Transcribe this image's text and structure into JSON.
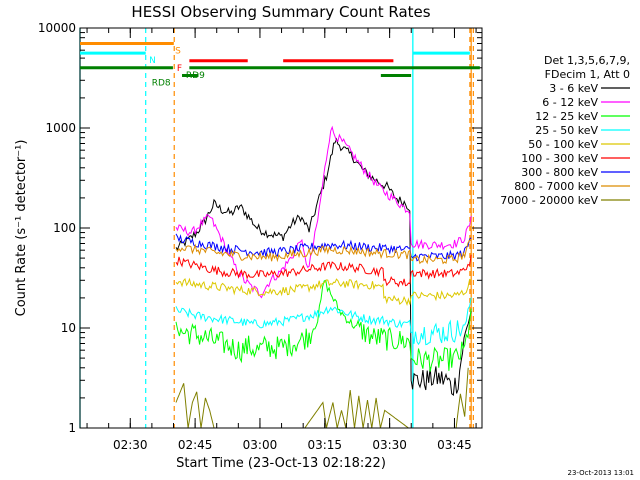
{
  "chart_data": {
    "type": "line",
    "title": "HESSI Observing Summary Count Rates",
    "xlabel": "Start Time (23-Oct-13 02:18:22)",
    "ylabel": "Count Rate (s⁻¹ detector⁻¹)",
    "yscale": "log",
    "ylim": [
      1,
      10000
    ],
    "xlim_minutes": [
      0,
      93
    ],
    "x_ticks": [
      {
        "label": "02:30",
        "min": 11.63
      },
      {
        "label": "02:45",
        "min": 26.63
      },
      {
        "label": "03:00",
        "min": 41.63
      },
      {
        "label": "03:15",
        "min": 56.63
      },
      {
        "label": "03:30",
        "min": 71.63
      },
      {
        "label": "03:45",
        "min": 86.63
      }
    ],
    "y_ticks": [
      {
        "label": "1",
        "value": 1
      },
      {
        "label": "10",
        "value": 10
      },
      {
        "label": "100",
        "value": 100
      },
      {
        "label": "1000",
        "value": 1000
      },
      {
        "label": "10000",
        "value": 10000
      }
    ],
    "legend_header": [
      "Det 1,3,5,6,7,9,",
      "FDecim 1, Att 0"
    ],
    "legend_position": "right",
    "series": [
      {
        "name": "3 - 6 keV",
        "color": "#000000",
        "points": [
          [
            22.2,
            62
          ],
          [
            25,
            75
          ],
          [
            27,
            90
          ],
          [
            29,
            120
          ],
          [
            31,
            175
          ],
          [
            33,
            150
          ],
          [
            35,
            140
          ],
          [
            37,
            165
          ],
          [
            39,
            130
          ],
          [
            41,
            100
          ],
          [
            43,
            90
          ],
          [
            45,
            85
          ],
          [
            47,
            82
          ],
          [
            49,
            110
          ],
          [
            51,
            130
          ],
          [
            53,
            95
          ],
          [
            55,
            180
          ],
          [
            57,
            330
          ],
          [
            59,
            750
          ],
          [
            61,
            620
          ],
          [
            63,
            520
          ],
          [
            65,
            400
          ],
          [
            67,
            330
          ],
          [
            69,
            290
          ],
          [
            71,
            260
          ],
          [
            73,
            200
          ],
          [
            75,
            180
          ],
          [
            76.3,
            160
          ],
          [
            76.6,
            3
          ],
          [
            78,
            3
          ],
          [
            80,
            3
          ],
          [
            82,
            3.2
          ],
          [
            85,
            3
          ],
          [
            86,
            2.5
          ],
          [
            87.5,
            3
          ],
          [
            88.5,
            6
          ],
          [
            89.5,
            10
          ],
          [
            90.5,
            15
          ]
        ]
      },
      {
        "name": "6 - 12 keV",
        "color": "#ff00ff",
        "points": [
          [
            22.2,
            100
          ],
          [
            24,
            95
          ],
          [
            26,
            90
          ],
          [
            28,
            110
          ],
          [
            30,
            130
          ],
          [
            32,
            90
          ],
          [
            34,
            60
          ],
          [
            36,
            40
          ],
          [
            38,
            30
          ],
          [
            40,
            25
          ],
          [
            42,
            22
          ],
          [
            44,
            30
          ],
          [
            46,
            35
          ],
          [
            48,
            45
          ],
          [
            50,
            60
          ],
          [
            51,
            80
          ],
          [
            52,
            50
          ],
          [
            53,
            40
          ],
          [
            55,
            120
          ],
          [
            57,
            500
          ],
          [
            58,
            1000
          ],
          [
            59,
            850
          ],
          [
            61,
            700
          ],
          [
            63,
            550
          ],
          [
            65,
            420
          ],
          [
            67,
            330
          ],
          [
            69,
            260
          ],
          [
            71,
            220
          ],
          [
            73,
            190
          ],
          [
            75,
            160
          ],
          [
            76.3,
            150
          ],
          [
            76.6,
            70
          ],
          [
            80,
            68
          ],
          [
            84,
            68
          ],
          [
            87,
            70
          ],
          [
            89,
            80
          ],
          [
            90.5,
            120
          ]
        ]
      },
      {
        "name": "12 - 25 keV",
        "color": "#00ff00",
        "points": [
          [
            22.2,
            12
          ],
          [
            23,
            9
          ],
          [
            25,
            9
          ],
          [
            27,
            8.5
          ],
          [
            29,
            8
          ],
          [
            31,
            7.5
          ],
          [
            33,
            7
          ],
          [
            35,
            6.5
          ],
          [
            37,
            6
          ],
          [
            39,
            6.5
          ],
          [
            41,
            6
          ],
          [
            43,
            6.5
          ],
          [
            45,
            6.3
          ],
          [
            47,
            6.5
          ],
          [
            49,
            7
          ],
          [
            51,
            7.5
          ],
          [
            53,
            8.5
          ],
          [
            55,
            12
          ],
          [
            56.5,
            30
          ],
          [
            58,
            22
          ],
          [
            60,
            15
          ],
          [
            62,
            12
          ],
          [
            64,
            10
          ],
          [
            66,
            9
          ],
          [
            68,
            8
          ],
          [
            70,
            8
          ],
          [
            72,
            7.5
          ],
          [
            74,
            7.5
          ],
          [
            76.3,
            7.3
          ],
          [
            76.6,
            5
          ],
          [
            80,
            4.8
          ],
          [
            84,
            4.8
          ],
          [
            87,
            5
          ],
          [
            89,
            6
          ],
          [
            90.5,
            15
          ]
        ]
      },
      {
        "name": "25 - 50 keV",
        "color": "#00ffff",
        "points": [
          [
            22.2,
            15
          ],
          [
            25,
            14
          ],
          [
            28,
            13
          ],
          [
            31,
            12.5
          ],
          [
            34,
            12
          ],
          [
            37,
            11.5
          ],
          [
            40,
            11
          ],
          [
            43,
            11
          ],
          [
            46,
            11.5
          ],
          [
            49,
            12
          ],
          [
            52,
            13
          ],
          [
            55,
            14
          ],
          [
            58,
            16
          ],
          [
            60,
            15
          ],
          [
            62,
            14
          ],
          [
            64,
            13
          ],
          [
            66,
            12.5
          ],
          [
            68,
            12
          ],
          [
            70,
            12
          ],
          [
            72,
            11.5
          ],
          [
            74,
            11
          ],
          [
            76.3,
            11
          ],
          [
            76.6,
            9
          ],
          [
            80,
            9
          ],
          [
            84,
            9
          ],
          [
            87,
            9.5
          ],
          [
            89,
            10
          ],
          [
            90.5,
            20
          ]
        ]
      },
      {
        "name": "50 - 100 keV",
        "color": "#dcc800",
        "points": [
          [
            22.2,
            30
          ],
          [
            25,
            28
          ],
          [
            28,
            27
          ],
          [
            31,
            26
          ],
          [
            34,
            25
          ],
          [
            37,
            24
          ],
          [
            40,
            23.5
          ],
          [
            43,
            23
          ],
          [
            46,
            23.5
          ],
          [
            49,
            24
          ],
          [
            52,
            25
          ],
          [
            55,
            27
          ],
          [
            58,
            28
          ],
          [
            61,
            28
          ],
          [
            64,
            27
          ],
          [
            67,
            27
          ],
          [
            69,
            26
          ],
          [
            70.1,
            26
          ],
          [
            70.3,
            20
          ],
          [
            73,
            19
          ],
          [
            76.3,
            19
          ],
          [
            76.6,
            21
          ],
          [
            80,
            21
          ],
          [
            84,
            21
          ],
          [
            87,
            21
          ],
          [
            89,
            23
          ],
          [
            90.5,
            30
          ]
        ]
      },
      {
        "name": "100 - 300 keV",
        "color": "#ff0000",
        "points": [
          [
            22.2,
            48
          ],
          [
            25,
            44
          ],
          [
            28,
            41
          ],
          [
            31,
            38
          ],
          [
            34,
            36
          ],
          [
            37,
            35
          ],
          [
            40,
            34
          ],
          [
            43,
            34
          ],
          [
            46,
            35
          ],
          [
            49,
            36
          ],
          [
            52,
            38
          ],
          [
            55,
            40
          ],
          [
            58,
            42
          ],
          [
            61,
            41
          ],
          [
            64,
            40
          ],
          [
            67,
            38
          ],
          [
            69,
            37
          ],
          [
            70.1,
            37
          ],
          [
            70.3,
            30
          ],
          [
            73,
            29
          ],
          [
            76.3,
            28
          ],
          [
            76.6,
            36
          ],
          [
            80,
            35
          ],
          [
            84,
            35
          ],
          [
            87,
            35
          ],
          [
            89,
            38
          ],
          [
            90.5,
            50
          ]
        ]
      },
      {
        "name": "300 - 800 keV",
        "color": "#0000ff",
        "points": [
          [
            22.2,
            80
          ],
          [
            25,
            74
          ],
          [
            28,
            70
          ],
          [
            31,
            66
          ],
          [
            34,
            63
          ],
          [
            37,
            60
          ],
          [
            40,
            58
          ],
          [
            43,
            57
          ],
          [
            46,
            58
          ],
          [
            49,
            60
          ],
          [
            52,
            63
          ],
          [
            55,
            66
          ],
          [
            58,
            68
          ],
          [
            61,
            67
          ],
          [
            64,
            66
          ],
          [
            67,
            64
          ],
          [
            70,
            63
          ],
          [
            73,
            62
          ],
          [
            76.3,
            60
          ],
          [
            76.6,
            52
          ],
          [
            80,
            52
          ],
          [
            84,
            52
          ],
          [
            87,
            53
          ],
          [
            89,
            57
          ],
          [
            90.5,
            80
          ]
        ]
      },
      {
        "name": "800 - 7000 keV",
        "color": "#dc8c00",
        "points": [
          [
            22.2,
            65
          ],
          [
            25,
            62
          ],
          [
            28,
            60
          ],
          [
            31,
            57
          ],
          [
            34,
            55
          ],
          [
            37,
            53
          ],
          [
            40,
            52
          ],
          [
            43,
            51
          ],
          [
            46,
            52
          ],
          [
            49,
            54
          ],
          [
            52,
            56
          ],
          [
            55,
            59
          ],
          [
            58,
            61
          ],
          [
            61,
            60
          ],
          [
            64,
            59
          ],
          [
            67,
            57
          ],
          [
            70,
            56
          ],
          [
            73,
            55
          ],
          [
            76.3,
            54
          ],
          [
            76.6,
            48
          ],
          [
            80,
            48
          ],
          [
            84,
            48
          ],
          [
            87,
            49
          ],
          [
            89,
            55
          ],
          [
            90.5,
            75
          ]
        ]
      },
      {
        "name": "7000 - 20000 keV",
        "color": "#808000",
        "points": [
          [
            22.2,
            1.8
          ],
          [
            24,
            2.8
          ],
          [
            25,
            1
          ],
          [
            26,
            1.8
          ],
          [
            27,
            2.3
          ],
          [
            28,
            1
          ],
          [
            29,
            2
          ],
          [
            30,
            1.5
          ],
          [
            31,
            1
          ],
          [
            52,
            1
          ],
          [
            56.2,
            1.8
          ],
          [
            57,
            1
          ],
          [
            58.5,
            1.8
          ],
          [
            59.5,
            1
          ],
          [
            60.5,
            1.5
          ],
          [
            61.5,
            1
          ],
          [
            62.5,
            2.4
          ],
          [
            63.5,
            1
          ],
          [
            64.5,
            2.1
          ],
          [
            65.5,
            1
          ],
          [
            66.5,
            1.9
          ],
          [
            67.5,
            1
          ],
          [
            68.5,
            2
          ],
          [
            69.5,
            1
          ],
          [
            70.5,
            1.5
          ],
          [
            76,
            1
          ],
          [
            87,
            1
          ],
          [
            88,
            2.2
          ],
          [
            89,
            1.3
          ],
          [
            89.8,
            4
          ]
        ]
      }
    ],
    "flag_bars": [
      {
        "label": "S",
        "color": "#ff8c00",
        "y": 7000,
        "segments": [
          [
            0,
            21.7
          ]
        ],
        "label_at": 22.0
      },
      {
        "label": "N",
        "color": "#00ffff",
        "y": 5600,
        "segments": [
          [
            0,
            15.2
          ],
          [
            77,
            90.2
          ]
        ],
        "label_at": 16.0
      },
      {
        "label": "F",
        "color": "#ff0000",
        "y": 4700,
        "segments": [
          [
            25.3,
            38.8
          ],
          [
            47,
            72.5
          ]
        ],
        "label_at": 22.4
      },
      {
        "label": "RD9",
        "color": "#008000",
        "y": 4000,
        "segments": [
          [
            0,
            21.5
          ],
          [
            25.3,
            92.5
          ]
        ],
        "label_at": 24.5
      },
      {
        "label": "RD8",
        "color": "#008000",
        "y": 3350,
        "segments": [
          [
            23.6,
            27.4
          ],
          [
            69.6,
            76.6
          ]
        ],
        "label_at": 16.6
      }
    ],
    "cyan_lines_solid": [
      0,
      77
    ],
    "cyan_lines_dashed": [
      15.2
    ],
    "orange_lines_dashed": [
      21.8,
      90.2,
      91.0
    ],
    "orange_lines_solid": [
      90.5
    ]
  },
  "footer": {
    "timestamp": "23-Oct-2013 13:01"
  }
}
